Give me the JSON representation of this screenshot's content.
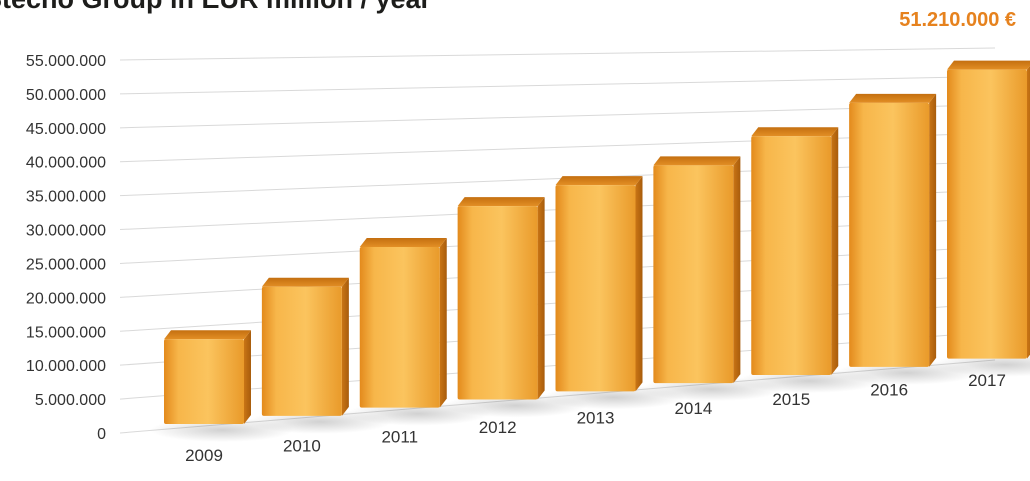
{
  "chart_data": {
    "type": "bar",
    "title": "Stecho Group in EUR million / year",
    "annotation": "51.210.000 €",
    "categories": [
      "2009",
      "2010",
      "2011",
      "2012",
      "2013",
      "2014",
      "2015",
      "2016",
      "2017"
    ],
    "values": [
      13000000,
      20000000,
      25300000,
      31000000,
      33700000,
      36300000,
      40600000,
      45800000,
      51210000
    ],
    "ylim": [
      0,
      55000000
    ],
    "yticks": [
      "0",
      "5.000.000",
      "10.000.000",
      "15.000.000",
      "20.000.000",
      "25.000.000",
      "30.000.000",
      "35.000.000",
      "40.000.000",
      "45.000.000",
      "50.000.000",
      "55.000.000"
    ],
    "xlabel": "",
    "ylabel": "",
    "grid": true,
    "bar_color": "#f5a933",
    "accent_color": "#e6821e"
  }
}
